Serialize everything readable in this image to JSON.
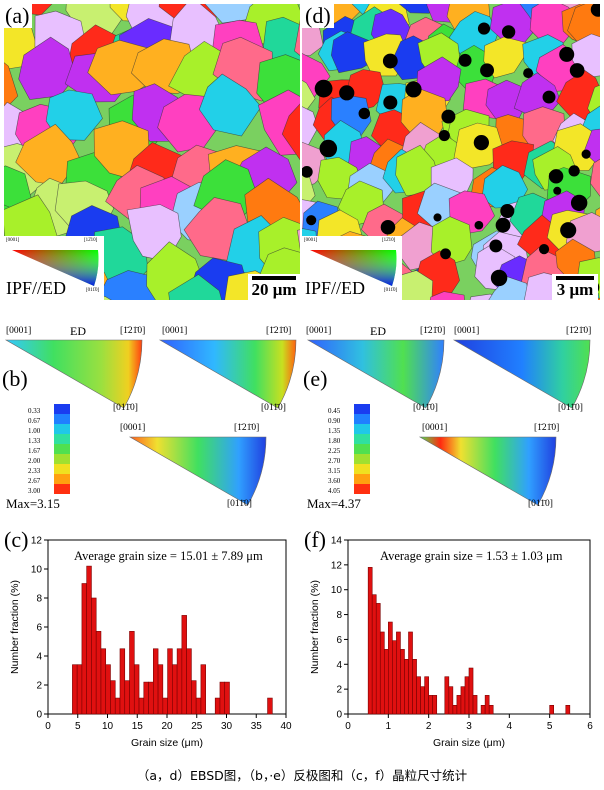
{
  "panels": {
    "a": {
      "letter": "(a)",
      "ipf_label": "IPF//ED",
      "scale": "20 μm",
      "key_labels": [
        "[0001]",
        "[12̄10]",
        "[011̄0]"
      ]
    },
    "d": {
      "letter": "(d)",
      "ipf_label": "IPF//ED",
      "scale": "3 μm",
      "key_labels": [
        "[0001]",
        "[12̄10]",
        "[011̄0]"
      ]
    },
    "b": {
      "letter": "(b)",
      "ed_label": "ED",
      "max_label": "Max=3.15",
      "pf_labels": {
        "top_left": "[0001]",
        "top_right": "[1̄21̄0]",
        "bottom": "[011̄0]"
      },
      "legend_ticks": [
        "0.33",
        "0.67",
        "1.00",
        "1.33",
        "1.67",
        "2.00",
        "2.33",
        "2.67",
        "3.00"
      ]
    },
    "e": {
      "letter": "(e)",
      "ed_label": "ED",
      "max_label": "Max=4.37",
      "pf_labels": {
        "top_left": "[0001]",
        "top_right": "[1̄21̄0]",
        "bottom": "[011̄0]"
      },
      "legend_ticks": [
        "0.45",
        "0.90",
        "1.35",
        "1.80",
        "2.25",
        "2.70",
        "3.15",
        "3.60",
        "4.05"
      ]
    },
    "c": {
      "letter": "(c)",
      "avg": "Average grain size = 15.01 ± 7.89 μm"
    },
    "f": {
      "letter": "(f)",
      "avg": "Average grain size = 1.53 ± 1.03 μm"
    }
  },
  "caption": "（a，d）EBSD图，（b，·e）反极图和（c，f）晶粒尺寸统计",
  "colors": {
    "bar_fill": "#e01010",
    "bar_edge": "#7a0000"
  },
  "chart_data": [
    {
      "type": "bar",
      "panel": "c",
      "xlabel": "Grain size (μm)",
      "ylabel": "Number fraction (%)",
      "xlim": [
        0,
        40
      ],
      "ylim": [
        0,
        12
      ],
      "xticks": [
        0,
        5,
        10,
        15,
        20,
        25,
        30,
        35,
        40
      ],
      "yticks": [
        0,
        2,
        4,
        6,
        8,
        10,
        12
      ],
      "bin_width": 0.8,
      "x": [
        4.5,
        5.3,
        6.1,
        6.9,
        7.7,
        8.5,
        9.3,
        10.1,
        10.9,
        11.7,
        12.5,
        13.3,
        14.1,
        14.9,
        15.7,
        16.5,
        17.3,
        18.1,
        18.9,
        19.7,
        20.5,
        21.3,
        22.1,
        22.9,
        23.7,
        24.5,
        25.3,
        26.1,
        26.9,
        28.5,
        29.3,
        30.1,
        37.3
      ],
      "values": [
        3.4,
        3.4,
        9.0,
        10.2,
        8.0,
        5.7,
        4.5,
        3.4,
        2.3,
        1.1,
        4.5,
        2.3,
        5.7,
        3.4,
        1.1,
        2.2,
        2.2,
        4.5,
        3.4,
        1.1,
        4.5,
        3.4,
        4.5,
        6.8,
        4.5,
        2.3,
        1.1,
        3.4,
        0,
        1.1,
        2.2,
        2.2,
        1.1
      ]
    },
    {
      "type": "bar",
      "panel": "f",
      "xlabel": "Grain size (μm)",
      "ylabel": "Number fraction (%)",
      "xlim": [
        0,
        6
      ],
      "ylim": [
        0,
        14
      ],
      "xticks": [
        0,
        1,
        2,
        3,
        4,
        5,
        6
      ],
      "yticks": [
        0,
        2,
        4,
        6,
        8,
        10,
        12,
        14
      ],
      "bin_width": 0.1,
      "x": [
        0.55,
        0.65,
        0.75,
        0.85,
        0.95,
        1.05,
        1.15,
        1.25,
        1.35,
        1.45,
        1.55,
        1.65,
        1.75,
        1.85,
        1.95,
        2.05,
        2.15,
        2.45,
        2.55,
        2.65,
        2.75,
        2.85,
        2.95,
        3.05,
        3.15,
        3.35,
        3.45,
        3.55,
        5.05,
        5.45
      ],
      "values": [
        11.8,
        9.6,
        8.9,
        6.6,
        5.2,
        7.4,
        5.9,
        6.6,
        5.2,
        4.4,
        6.6,
        4.4,
        3.0,
        2.2,
        3.0,
        1.5,
        1.5,
        3.0,
        2.2,
        0.7,
        1.5,
        2.2,
        3.0,
        3.7,
        1.5,
        0.7,
        1.5,
        0.7,
        0.7,
        0.7
      ]
    }
  ]
}
